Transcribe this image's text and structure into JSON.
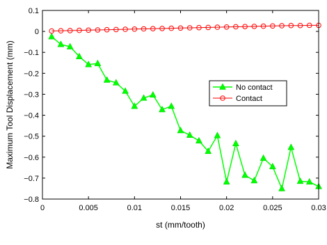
{
  "chart_data": {
    "type": "line",
    "title": "",
    "xlabel": "st (mm/tooth)",
    "ylabel": "Maximum Tool Displacement (mm)",
    "xlim": [
      0,
      0.03
    ],
    "ylim": [
      -0.8,
      0.1
    ],
    "xticks": [
      0,
      0.005,
      0.01,
      0.015,
      0.02,
      0.025,
      0.03
    ],
    "xtick_labels": [
      "0",
      "0.005",
      "0.01",
      "0.015",
      "0.02",
      "0.025",
      "0.03"
    ],
    "yticks": [
      0.1,
      0,
      -0.1,
      -0.2,
      -0.3,
      -0.4,
      -0.5,
      -0.6,
      -0.7,
      -0.8
    ],
    "ytick_labels": [
      "0.1",
      "0",
      "−0.1",
      "−0.2",
      "−0.3",
      "−0.4",
      "−0.5",
      "−0.6",
      "−0.7",
      "−0.8"
    ],
    "grid": false,
    "legend_position": "center-right",
    "x": [
      0.001,
      0.002,
      0.003,
      0.004,
      0.005,
      0.006,
      0.007,
      0.008,
      0.009,
      0.01,
      0.011,
      0.012,
      0.013,
      0.014,
      0.015,
      0.016,
      0.017,
      0.018,
      0.019,
      0.02,
      0.021,
      0.022,
      0.023,
      0.024,
      0.025,
      0.026,
      0.027,
      0.028,
      0.029,
      0.03
    ],
    "series": [
      {
        "name": "No contact",
        "color": "#00ff00",
        "marker": "triangle",
        "values": [
          -0.025,
          -0.062,
          -0.073,
          -0.12,
          -0.158,
          -0.153,
          -0.232,
          -0.245,
          -0.285,
          -0.357,
          -0.318,
          -0.303,
          -0.373,
          -0.357,
          -0.473,
          -0.495,
          -0.522,
          -0.572,
          -0.497,
          -0.718,
          -0.535,
          -0.686,
          -0.712,
          -0.605,
          -0.645,
          -0.75,
          -0.553,
          -0.715,
          -0.718,
          -0.74
        ]
      },
      {
        "name": "Contact",
        "color": "#ff0000",
        "marker": "circle",
        "values": [
          0.002,
          0.003,
          0.004,
          0.005,
          0.006,
          0.007,
          0.008,
          0.009,
          0.01,
          0.011,
          0.012,
          0.013,
          0.014,
          0.015,
          0.016,
          0.017,
          0.018,
          0.019,
          0.02,
          0.021,
          0.022,
          0.023,
          0.024,
          0.025,
          0.026,
          0.027,
          0.028,
          0.028,
          0.029,
          0.029
        ]
      }
    ]
  }
}
